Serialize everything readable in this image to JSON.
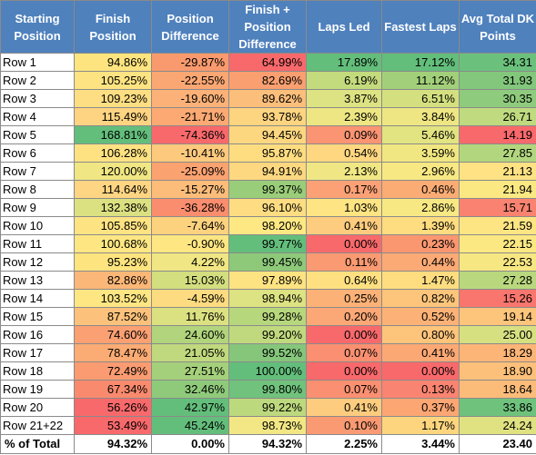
{
  "headers": [
    "Starting Position",
    "Finish Position",
    "Position Difference",
    "Finish + Position Difference",
    "Laps Led",
    "Fastest Laps",
    "Avg Total DK Points"
  ],
  "rows": [
    {
      "label": "Row 1",
      "values": [
        "94.86%",
        "-29.87%",
        "64.99%",
        "17.89%",
        "17.12%",
        "34.31"
      ],
      "colors": [
        "#fde47f",
        "#f99a6e",
        "#f8696b",
        "#63be7b",
        "#63be7b",
        "#6bc17c"
      ]
    },
    {
      "label": "Row 2",
      "values": [
        "105.25%",
        "-22.55%",
        "82.69%",
        "6.19%",
        "11.12%",
        "31.93"
      ],
      "colors": [
        "#fee382",
        "#fba773",
        "#fa9f70",
        "#c4db7d",
        "#a2d07a",
        "#82c77c"
      ]
    },
    {
      "label": "Row 3",
      "values": [
        "109.23%",
        "-19.60%",
        "89.62%",
        "3.87%",
        "6.51%",
        "30.35"
      ],
      "colors": [
        "#fede83",
        "#fcb178",
        "#fcbe7b",
        "#dde282",
        "#d4e07f",
        "#8fcb7d"
      ]
    },
    {
      "label": "Row 4",
      "values": [
        "115.49%",
        "-21.71%",
        "93.78%",
        "2.39%",
        "3.84%",
        "26.71"
      ],
      "colors": [
        "#fed382",
        "#fca973",
        "#fdd480",
        "#ede683",
        "#eee683",
        "#bfda7f"
      ]
    },
    {
      "label": "Row 5",
      "values": [
        "168.81%",
        "-74.36%",
        "94.45%",
        "0.09%",
        "5.46%",
        "14.19"
      ],
      "colors": [
        "#63be7b",
        "#f8696b",
        "#fdd780",
        "#fa9472",
        "#e2e381",
        "#f8696b"
      ]
    },
    {
      "label": "Row 6",
      "values": [
        "106.28%",
        "-10.41%",
        "95.87%",
        "0.54%",
        "3.59%",
        "27.85"
      ],
      "colors": [
        "#fee282",
        "#fdc97d",
        "#fedd81",
        "#fed780",
        "#f1e782",
        "#b2d67e"
      ]
    },
    {
      "label": "Row 7",
      "values": [
        "120.00%",
        "-25.09%",
        "94.91%",
        "2.13%",
        "2.96%",
        "21.13"
      ],
      "colors": [
        "#f0e683",
        "#fba271",
        "#fdd880",
        "#f0e784",
        "#f7e883",
        "#fee283"
      ]
    },
    {
      "label": "Row 8",
      "values": [
        "114.64%",
        "-15.27%",
        "99.37%",
        "0.17%",
        "0.46%",
        "21.94"
      ],
      "colors": [
        "#fed582",
        "#fcbc7a",
        "#9acd79",
        "#fba175",
        "#fbac74",
        "#fbe882"
      ]
    },
    {
      "label": "Row 9",
      "values": [
        "132.38%",
        "-36.28%",
        "96.10%",
        "1.03%",
        "2.86%",
        "15.71"
      ],
      "colors": [
        "#dbe081",
        "#fa8d6d",
        "#fedd82",
        "#fee482",
        "#f7e884",
        "#f98370"
      ]
    },
    {
      "label": "Row 10",
      "values": [
        "105.85%",
        "-7.64%",
        "98.20%",
        "0.41%",
        "1.39%",
        "21.59"
      ],
      "colors": [
        "#fee382",
        "#fdd27f",
        "#fee883",
        "#fdcc7e",
        "#fedc80",
        "#fee583"
      ]
    },
    {
      "label": "Row 11",
      "values": [
        "100.68%",
        "-0.90%",
        "99.77%",
        "0.00%",
        "0.23%",
        "22.15"
      ],
      "colors": [
        "#fee783",
        "#fee682",
        "#63be7b",
        "#f8696b",
        "#fa9771",
        "#fbe882"
      ]
    },
    {
      "label": "Row 12",
      "values": [
        "95.23%",
        "4.22%",
        "99.45%",
        "0.11%",
        "0.44%",
        "22.53"
      ],
      "colors": [
        "#fde47f",
        "#f0e683",
        "#8ec97a",
        "#fa9a72",
        "#fcaa75",
        "#f7e783"
      ]
    },
    {
      "label": "Row 13",
      "values": [
        "82.86%",
        "15.03%",
        "97.89%",
        "0.64%",
        "1.47%",
        "27.28"
      ],
      "colors": [
        "#fbb777",
        "#d3de7f",
        "#fee382",
        "#fee081",
        "#fedd80",
        "#b9d87e"
      ]
    },
    {
      "label": "Row 14",
      "values": [
        "103.52%",
        "-4.59%",
        "98.94%",
        "0.25%",
        "0.82%",
        "15.26"
      ],
      "colors": [
        "#fee683",
        "#fddb80",
        "#dde282",
        "#fcb277",
        "#fdc57b",
        "#f9766e"
      ]
    },
    {
      "label": "Row 15",
      "values": [
        "87.52%",
        "11.76%",
        "99.28%",
        "0.20%",
        "0.52%",
        "19.14"
      ],
      "colors": [
        "#fcc27b",
        "#dbe081",
        "#b7d77d",
        "#fba776",
        "#fcb176",
        "#fdc47b"
      ]
    },
    {
      "label": "Row 16",
      "values": [
        "74.60%",
        "24.60%",
        "99.20%",
        "0.00%",
        "0.80%",
        "25.00"
      ],
      "colors": [
        "#fba072",
        "#b1d47c",
        "#c1d97e",
        "#f8696b",
        "#fdc47b",
        "#d6e081"
      ]
    },
    {
      "label": "Row 17",
      "values": [
        "78.47%",
        "21.05%",
        "99.52%",
        "0.07%",
        "0.41%",
        "18.29"
      ],
      "colors": [
        "#fbab74",
        "#c0d87e",
        "#85c67b",
        "#fa9071",
        "#fca874",
        "#fcb577"
      ]
    },
    {
      "label": "Row 18",
      "values": [
        "72.49%",
        "27.51%",
        "100.00%",
        "0.00%",
        "0.00%",
        "18.90"
      ],
      "colors": [
        "#fa9b71",
        "#a5d07b",
        "#63be7b",
        "#f8696b",
        "#f8696b",
        "#fcc07a"
      ]
    },
    {
      "label": "Row 19",
      "values": [
        "67.34%",
        "32.46%",
        "99.80%",
        "0.07%",
        "0.13%",
        "18.64"
      ],
      "colors": [
        "#f98a6e",
        "#8fca7b",
        "#70c27c",
        "#fa9071",
        "#f98471",
        "#fcbc79"
      ]
    },
    {
      "label": "Row 20",
      "values": [
        "56.26%",
        "42.97%",
        "99.22%",
        "0.41%",
        "0.37%",
        "33.86"
      ],
      "colors": [
        "#f8696b",
        "#63be7b",
        "#bdd97e",
        "#fdcc7e",
        "#fca673",
        "#6fc27c"
      ]
    },
    {
      "label": "Row 21+22",
      "values": [
        "53.49%",
        "45.24%",
        "98.73%",
        "0.10%",
        "1.17%",
        "24.24"
      ],
      "colors": [
        "#f8696b",
        "#63be7b",
        "#f2e784",
        "#fa9a72",
        "#fdd57f",
        "#e0e282"
      ]
    }
  ],
  "total": {
    "label": "% of Total",
    "values": [
      "94.32%",
      "0.00%",
      "94.32%",
      "2.25%",
      "3.44%",
      "23.40"
    ]
  },
  "header_color": "#4f81bd"
}
